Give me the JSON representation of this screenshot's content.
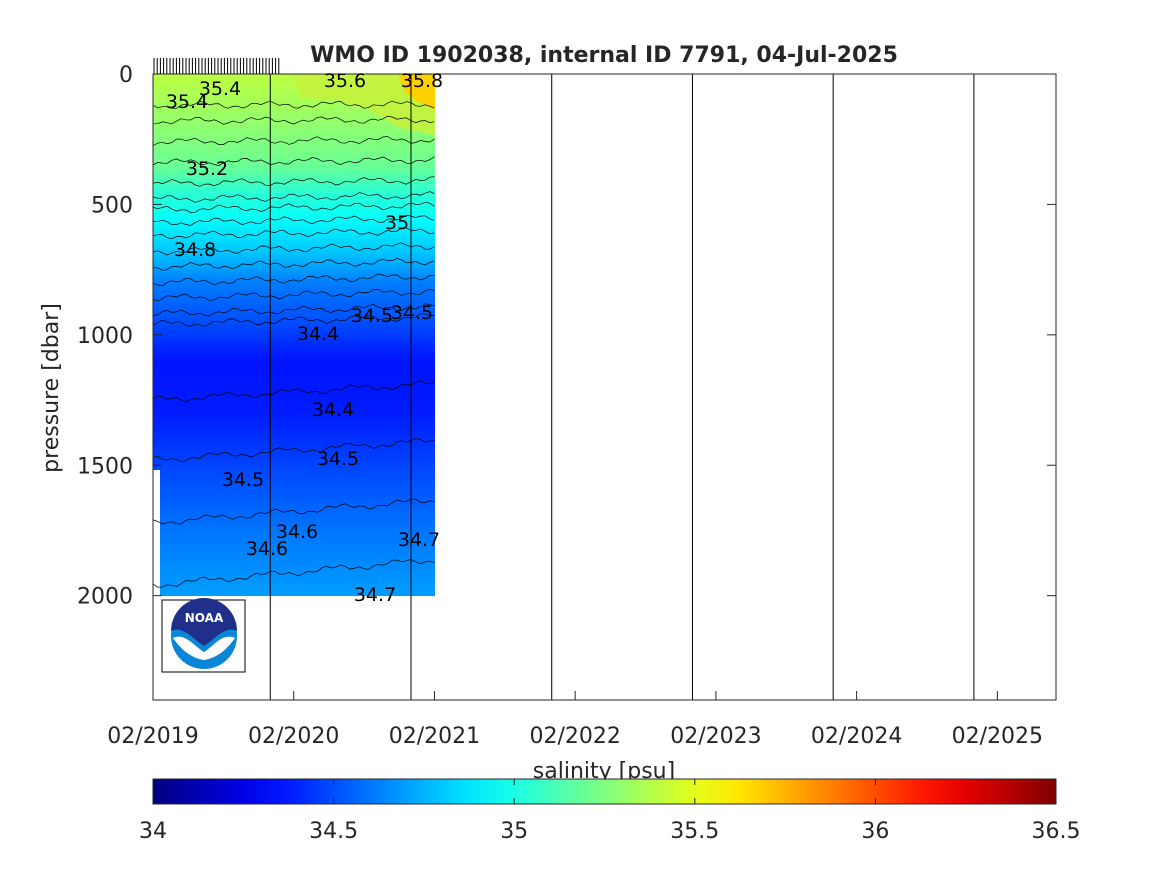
{
  "chart_data": {
    "type": "heatmap",
    "title": "WMO ID 1902038, internal ID 7791, 04-Jul-2025",
    "ylabel": "pressure [dbar]",
    "colorbar_label": "salinity [psu]",
    "x_ticks": [
      "02/2019",
      "02/2020",
      "02/2021",
      "02/2022",
      "02/2023",
      "02/2024",
      "02/2025"
    ],
    "y_ticks": [
      "0",
      "500",
      "1000",
      "1500",
      "2000"
    ],
    "y_tick_values": [
      0,
      500,
      1000,
      1500,
      2000
    ],
    "ylim": [
      0,
      2400
    ],
    "y_reversed": true,
    "xlim": [
      "02/2019",
      "07/2025"
    ],
    "data_extent": {
      "x": [
        "02/2019",
        "02/2021"
      ],
      "y": [
        0,
        2000
      ]
    },
    "colorbar": {
      "ticks": [
        "34",
        "34.5",
        "35",
        "35.5",
        "36",
        "36.5"
      ],
      "range": [
        34,
        36.5
      ],
      "colormap": "jet"
    },
    "vertical_reference_lines": [
      "12/2019",
      "12/2020",
      "12/2021",
      "12/2022",
      "12/2023",
      "12/2024"
    ],
    "contour_labels": [
      "35.4",
      "35.4",
      "35.6",
      "35.8",
      "35.2",
      "35",
      "34.8",
      "34.5",
      "34.5",
      "34.4",
      "34.4",
      "34.5",
      "34.5",
      "34.6",
      "34.6",
      "34.7",
      "34.7"
    ],
    "salinity_profile": [
      {
        "pressure": 0,
        "salinity": 35.4
      },
      {
        "pressure": 100,
        "salinity": 35.35
      },
      {
        "pressure": 350,
        "salinity": 35.2
      },
      {
        "pressure": 450,
        "salinity": 35.05
      },
      {
        "pressure": 550,
        "salinity": 34.95
      },
      {
        "pressure": 680,
        "salinity": 34.8
      },
      {
        "pressure": 800,
        "salinity": 34.62
      },
      {
        "pressure": 950,
        "salinity": 34.5
      },
      {
        "pressure": 1100,
        "salinity": 34.36
      },
      {
        "pressure": 1300,
        "salinity": 34.38
      },
      {
        "pressure": 1500,
        "salinity": 34.48
      },
      {
        "pressure": 1750,
        "salinity": 34.6
      },
      {
        "pressure": 2000,
        "salinity": 34.7
      }
    ],
    "logo": "NOAA"
  }
}
